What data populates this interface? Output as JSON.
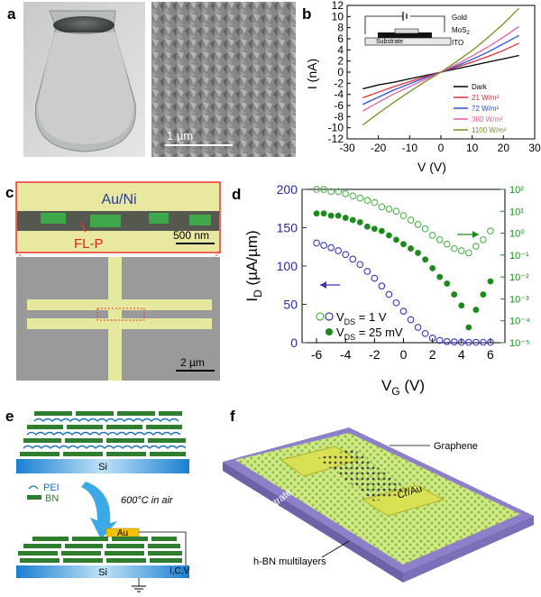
{
  "panel_labels": {
    "a": "a",
    "b": "b",
    "c": "c",
    "d": "d",
    "e": "e",
    "f": "f"
  },
  "panel_a": {
    "scale_bar": "1 µm"
  },
  "panel_b": {
    "inset": {
      "gold": "Gold",
      "mos2_main": "MoS",
      "mos2_sub": "2",
      "ito": "ITO",
      "substrate": "Substrate"
    },
    "chart_data": {
      "type": "line",
      "xlabel": "V (V)",
      "ylabel": "I (nA)",
      "xlim": [
        -30,
        30
      ],
      "ylim": [
        -12,
        12
      ],
      "xticks": [
        "-30",
        "-20",
        "-10",
        "0",
        "10",
        "20",
        "30"
      ],
      "yticks": [
        "12",
        "10",
        "8",
        "6",
        "4",
        "2",
        "0",
        "-2",
        "-4",
        "-6",
        "-8",
        "-10",
        "-12"
      ],
      "x": [
        -25,
        -20,
        -15,
        -10,
        -5,
        0,
        5,
        10,
        15,
        20,
        25
      ],
      "series": [
        {
          "name": "Dark",
          "color": "#000000",
          "values": [
            -3.0,
            -2.3,
            -1.8,
            -1.2,
            -0.6,
            0,
            0.6,
            1.2,
            1.8,
            2.4,
            3.0
          ]
        },
        {
          "name": "21 W/m²",
          "color": "#e0303a",
          "values": [
            -4.6,
            -3.6,
            -2.6,
            -1.7,
            -0.8,
            0,
            0.9,
            1.8,
            2.8,
            3.9,
            5.2
          ]
        },
        {
          "name": "72 W/m²",
          "color": "#3050d0",
          "values": [
            -5.8,
            -4.5,
            -3.2,
            -2.1,
            -1.0,
            0,
            1.1,
            2.3,
            3.6,
            5.1,
            6.6
          ]
        },
        {
          "name": "360 W/m²",
          "color": "#e060a0",
          "values": [
            -7.0,
            -5.4,
            -3.9,
            -2.6,
            -1.3,
            0,
            1.4,
            2.9,
            4.5,
            6.3,
            8.2
          ]
        },
        {
          "name": "1100 W/m²",
          "color": "#7a8f20",
          "values": [
            -9.5,
            -7.4,
            -5.4,
            -3.5,
            -1.7,
            0,
            1.9,
            3.9,
            6.2,
            8.7,
            11.5
          ]
        }
      ]
    }
  },
  "panel_c": {
    "top_label": "Au/Ni",
    "fl_label": "FL-P",
    "scale_top": "500 nm",
    "scale_bottom": "2 µm"
  },
  "panel_d": {
    "chart_data": {
      "type": "scatter",
      "xlabel_main": "V",
      "xlabel_sub": "G",
      "xlabel_unit": " (V)",
      "ylabel_main": "I",
      "ylabel_sub": "D",
      "ylabel_unit": " (µA/µm)",
      "xlim": [
        -7,
        7
      ],
      "ylim_left": [
        0,
        200
      ],
      "ylim_right_log10": [
        -5,
        2
      ],
      "xticks": [
        "-6",
        "-4",
        "-2",
        "0",
        "2",
        "4",
        "6"
      ],
      "yticks_left": [
        "200",
        "150",
        "100",
        "50",
        "0"
      ],
      "yticks_right": [
        "10²",
        "10¹",
        "10⁰",
        "10⁻¹",
        "10⁻²",
        "10⁻³",
        "10⁻⁴",
        "10⁻⁵"
      ],
      "legend": [
        {
          "main": "V",
          "sub": "DS",
          "rest": " = 1 V"
        },
        {
          "main": "V",
          "sub": "DS",
          "rest": " = 25 mV"
        }
      ],
      "x": [
        -6,
        -5.5,
        -5,
        -4.5,
        -4,
        -3.5,
        -3,
        -2.5,
        -2,
        -1.5,
        -1,
        -0.5,
        0,
        0.5,
        1,
        1.5,
        2,
        2.5,
        3,
        3.5,
        4,
        4.5,
        5,
        5.5,
        6
      ],
      "series": [
        {
          "axis": "left",
          "marker": "open",
          "color": "#3838b0",
          "values": [
            130,
            127,
            124,
            120,
            115,
            109,
            102,
            93,
            84,
            74,
            63,
            52,
            41,
            30,
            20,
            12,
            6,
            3,
            1.5,
            1,
            0.5,
            0.5,
            0.5,
            0.5,
            0.5
          ]
        },
        {
          "axis": "right",
          "marker": "open",
          "color": "#55b055",
          "values": [
            2,
            2,
            1.9,
            1.9,
            1.8,
            1.7,
            1.6,
            1.5,
            1.4,
            1.2,
            1.1,
            1.0,
            0.8,
            0.6,
            0.4,
            0.2,
            -0.1,
            -0.3,
            -0.5,
            -0.7,
            -0.8,
            -0.9,
            -0.6,
            -0.3,
            0.1
          ]
        },
        {
          "axis": "right",
          "marker": "filled",
          "color": "#1e8a1e",
          "values": [
            0.9,
            0.9,
            0.8,
            0.8,
            0.7,
            0.6,
            0.5,
            0.3,
            0.2,
            0.1,
            -0.1,
            -0.3,
            -0.5,
            -0.7,
            -0.9,
            -1.2,
            -1.6,
            -2.0,
            -2.3,
            -2.8,
            -3.3,
            -4.3,
            -3.5,
            -2.8,
            -2.2
          ]
        }
      ]
    }
  },
  "panel_e": {
    "si_top": "Si",
    "si_bottom": "Si",
    "pei": "PEI",
    "bn": "BN",
    "process": "600°C in air",
    "au": "Au",
    "icv": "I,C,V"
  },
  "panel_f": {
    "graphene": "Graphene",
    "electrode": "Cr/Au",
    "substrate": "Si Substrate",
    "hbn": "h-BN multilayers"
  }
}
